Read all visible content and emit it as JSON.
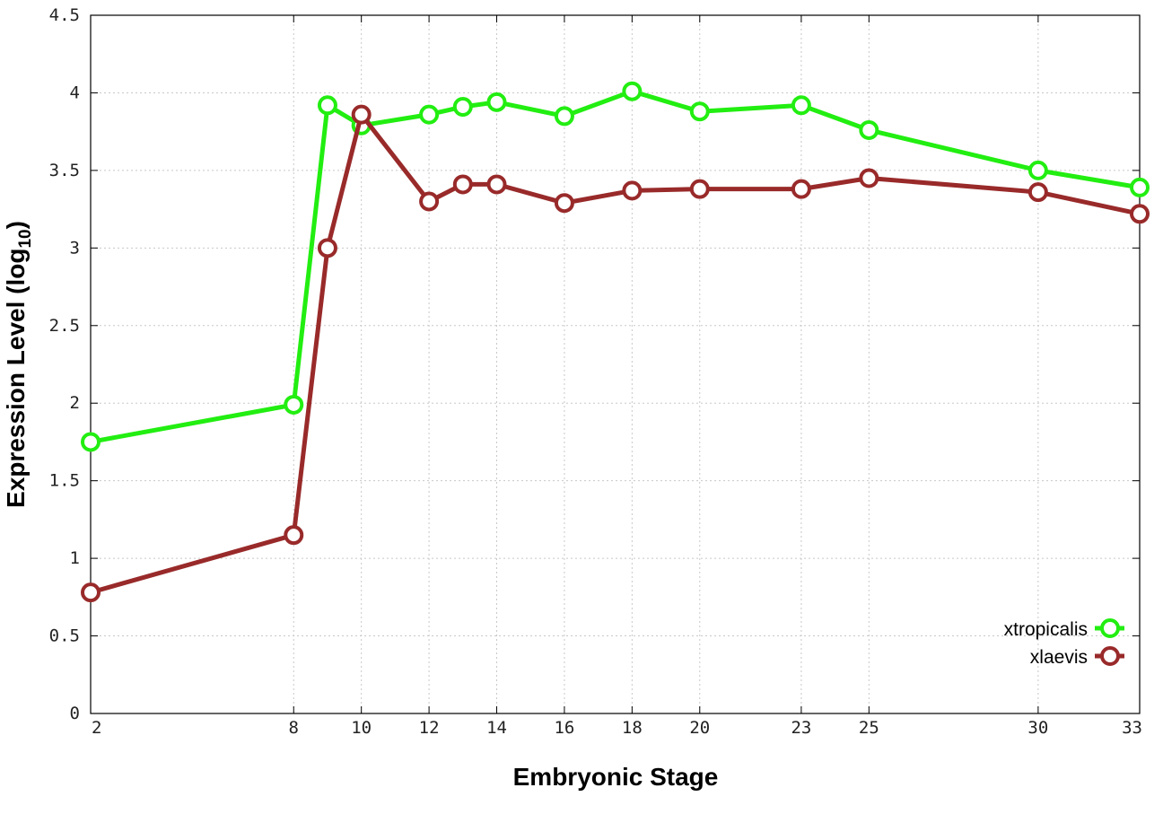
{
  "chart_data": {
    "type": "line",
    "xlabel": "Embryonic Stage",
    "ylabel": "Expression Level (log",
    "ylabel_subscript": "10",
    "ylabel_suffix": ")",
    "xlim": [
      2,
      33
    ],
    "ylim": [
      0,
      4.5
    ],
    "xticks": [
      2,
      8,
      10,
      12,
      14,
      16,
      18,
      20,
      23,
      25,
      30,
      33
    ],
    "yticks": [
      0,
      0.5,
      1,
      1.5,
      2,
      2.5,
      3,
      3.5,
      4,
      4.5
    ],
    "ytick_labels": [
      "0",
      "0.5",
      "1",
      "1.5",
      "2",
      "2.5",
      "3",
      "3.5",
      "4",
      "4.5"
    ],
    "grid": true,
    "legend_position": "bottom-right",
    "series": [
      {
        "name": "xtropicalis",
        "color": "#22ee11",
        "x": [
          2,
          8,
          9,
          10,
          12,
          13,
          14,
          16,
          18,
          20,
          23,
          25,
          30,
          33
        ],
        "y": [
          1.75,
          1.99,
          3.92,
          3.79,
          3.86,
          3.91,
          3.94,
          3.85,
          4.01,
          3.88,
          3.92,
          3.76,
          3.5,
          3.39
        ]
      },
      {
        "name": "xlaevis",
        "color": "#992a2a",
        "x": [
          2,
          8,
          9,
          10,
          12,
          13,
          14,
          16,
          18,
          20,
          23,
          25,
          30,
          33
        ],
        "y": [
          0.78,
          1.15,
          3.0,
          3.86,
          3.3,
          3.41,
          3.41,
          3.29,
          3.37,
          3.38,
          3.38,
          3.45,
          3.36,
          3.22
        ]
      }
    ]
  }
}
